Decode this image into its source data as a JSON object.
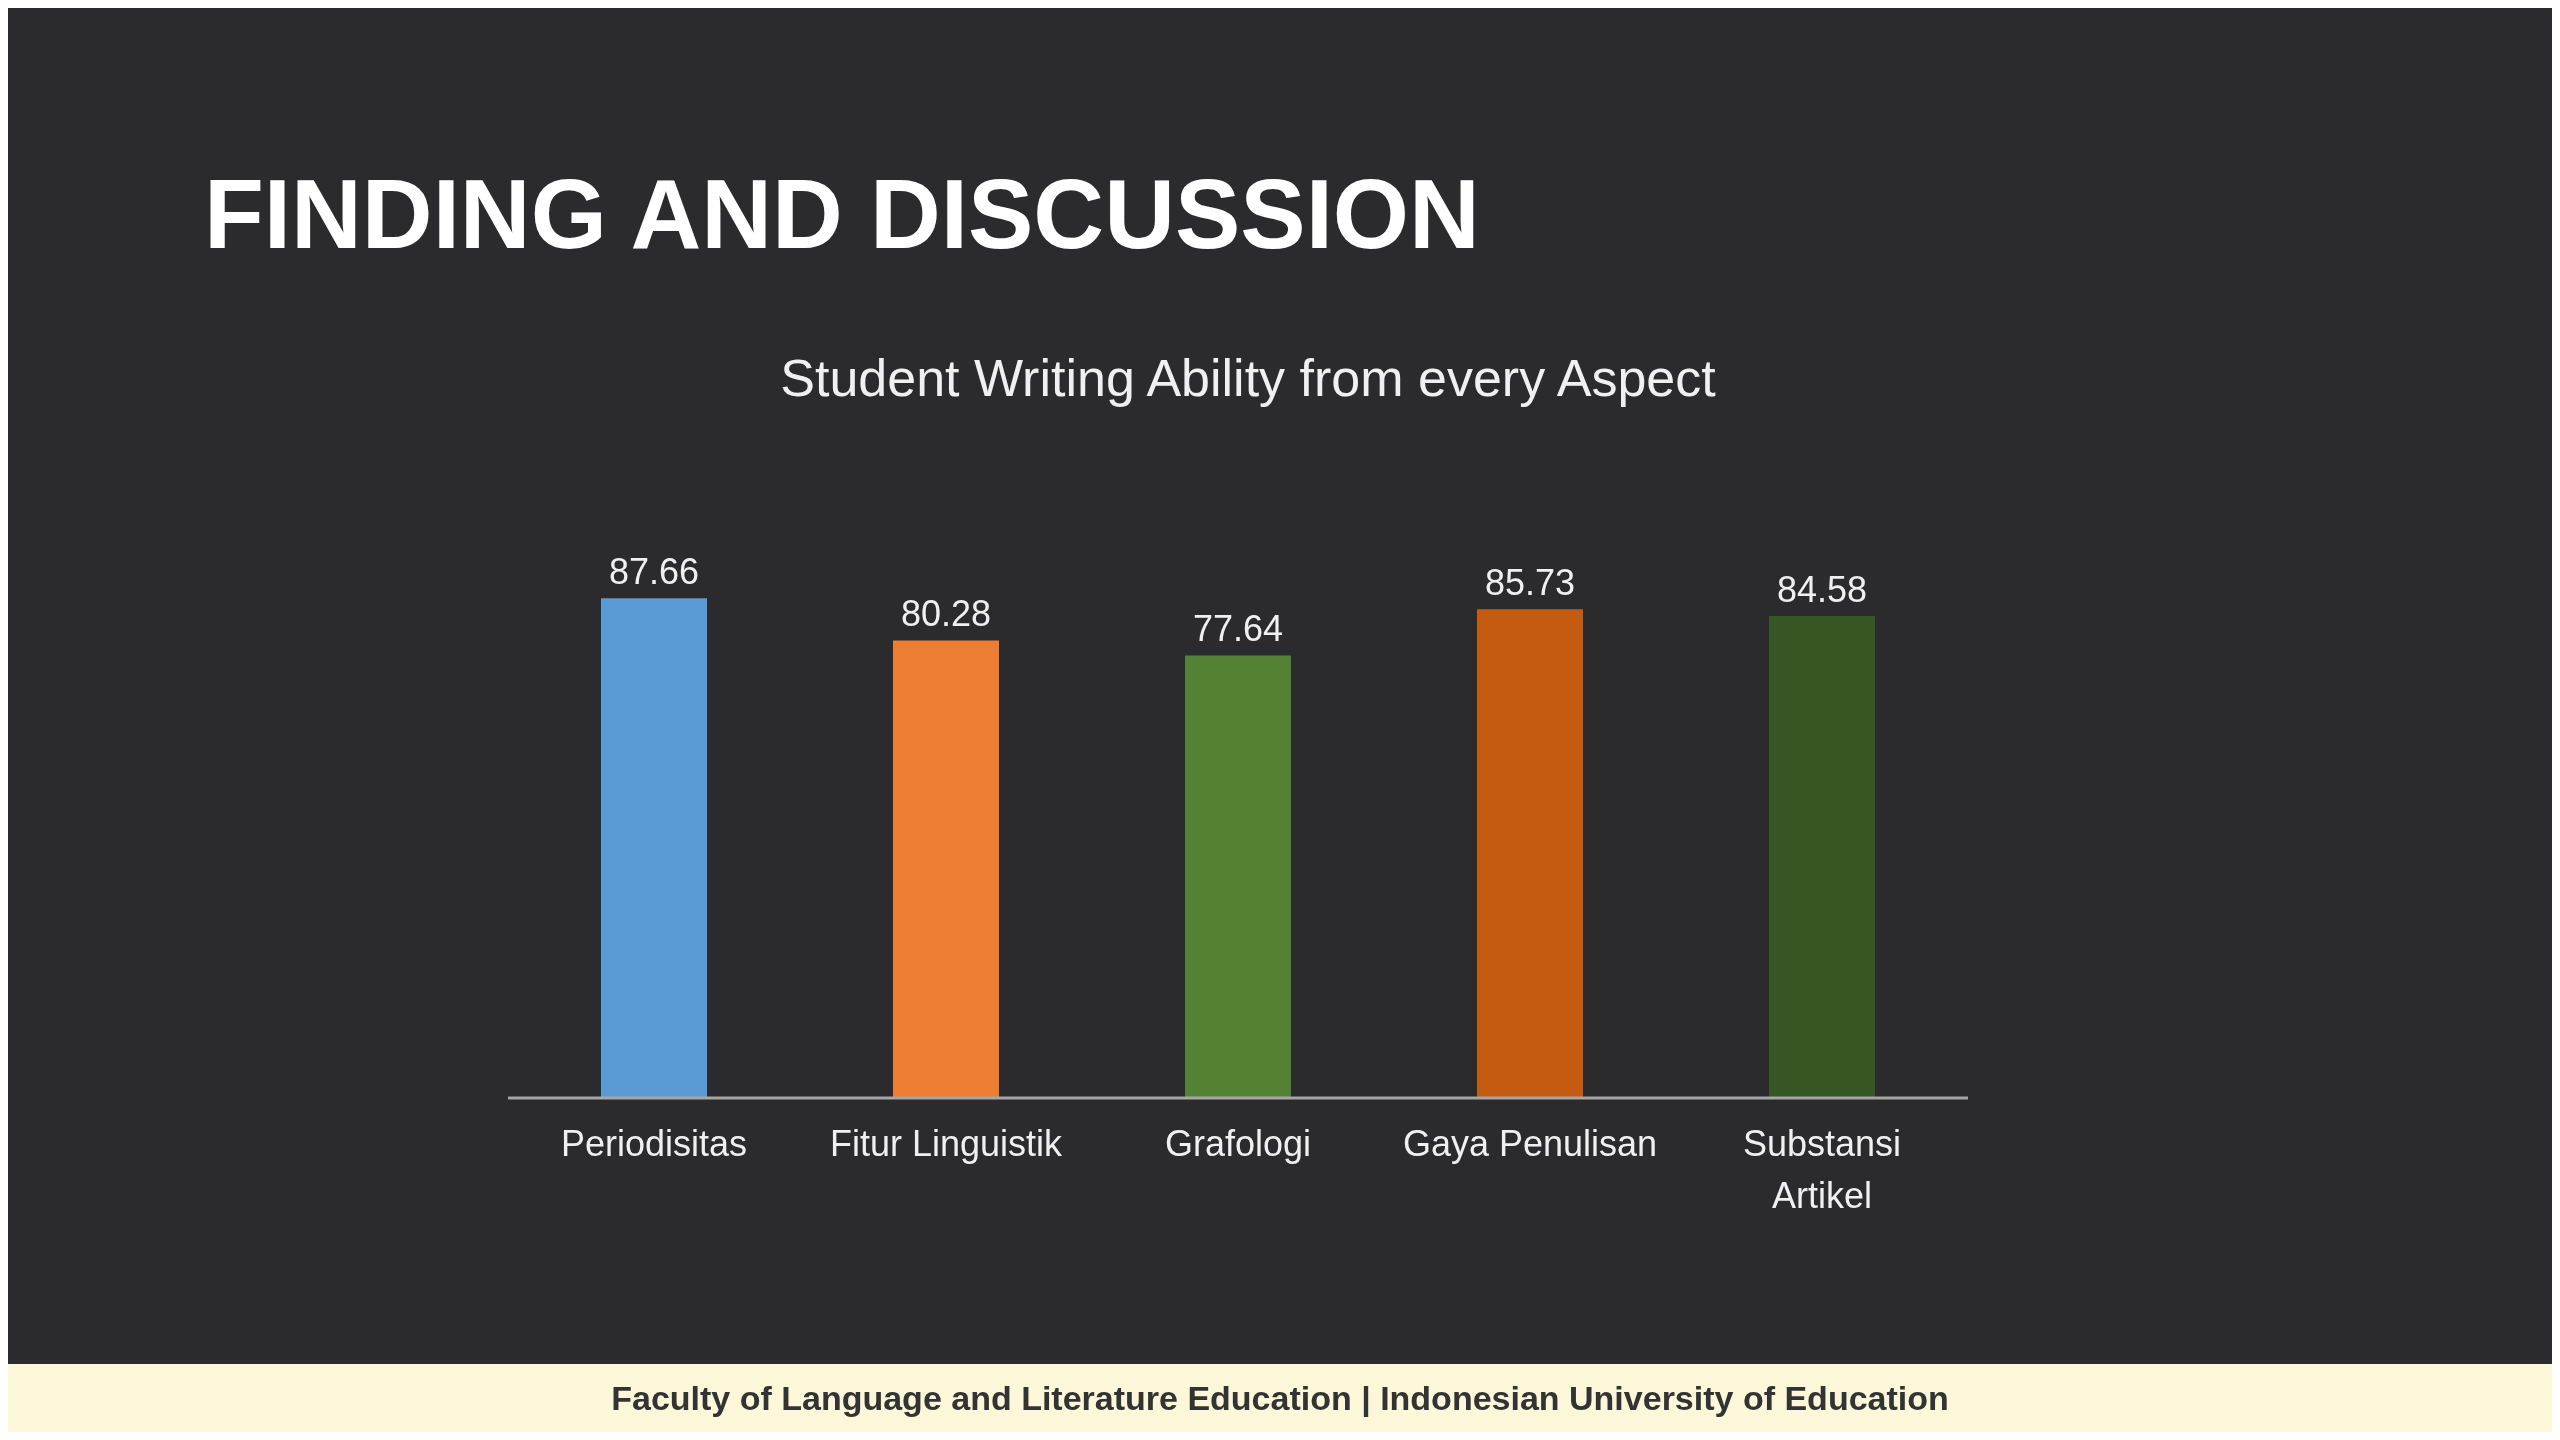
{
  "chart_data": {
    "type": "bar",
    "title": "FINDING AND DISCUSSION",
    "subtitle": "Student Writing Ability from every Aspect",
    "categories": [
      "Periodisitas",
      "Fitur Linguistik",
      "Grafologi",
      "Gaya Penulisan",
      "Substansi Artikel"
    ],
    "values": [
      87.66,
      80.28,
      77.64,
      85.73,
      84.58
    ],
    "colors": [
      "#5b9bd5",
      "#ed7d31",
      "#548235",
      "#c55a11",
      "#375623"
    ],
    "tick_labels": "x",
    "data_labels": true,
    "annotations": [
      "Faculty of Language and Literature Education | Indonesian University of Education"
    ]
  }
}
